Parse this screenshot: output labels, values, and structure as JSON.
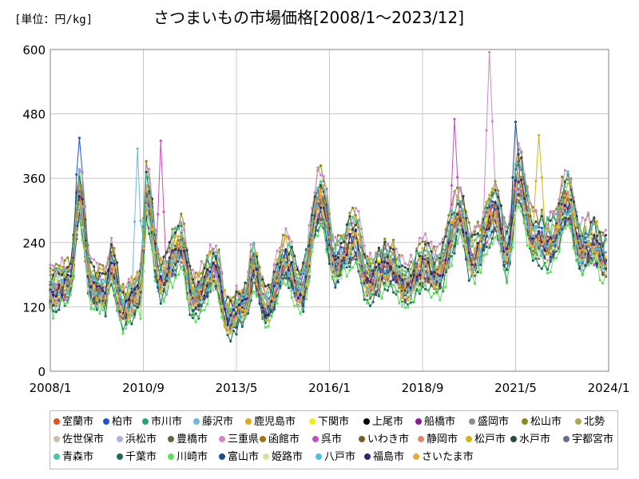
{
  "unit_label": "[単位：円/kg]",
  "title": "さつまいもの市場価格[2008/1～2023/12]",
  "chart_data": {
    "type": "line",
    "title": "さつまいもの市場価格[2008/1～2023/12]",
    "ylabel": "[単位：円/kg]",
    "xlabel": "",
    "ylim": [
      0,
      600
    ],
    "yticks": [
      0,
      120,
      240,
      360,
      480,
      600
    ],
    "xlim": [
      "2008/1",
      "2024/1"
    ],
    "xticks": [
      "2008/1",
      "2010/9",
      "2013/5",
      "2016/1",
      "2018/9",
      "2021/5",
      "2024/1"
    ],
    "grid": true,
    "legend_position": "bottom",
    "markers": true,
    "x_start": "2008/1",
    "x_end": "2023/12",
    "series_shape": [
      {
        "x": "2008/1",
        "level": 150
      },
      {
        "x": "2008/8",
        "level": 170
      },
      {
        "x": "2008/11",
        "level": 330
      },
      {
        "x": "2009/3",
        "level": 160
      },
      {
        "x": "2009/8",
        "level": 150
      },
      {
        "x": "2009/10",
        "level": 200
      },
      {
        "x": "2010/2",
        "level": 120
      },
      {
        "x": "2010/8",
        "level": 150
      },
      {
        "x": "2010/10",
        "level": 330
      },
      {
        "x": "2011/3",
        "level": 170
      },
      {
        "x": "2011/10",
        "level": 240
      },
      {
        "x": "2012/2",
        "level": 140
      },
      {
        "x": "2012/10",
        "level": 190
      },
      {
        "x": "2013/2",
        "level": 100
      },
      {
        "x": "2013/8",
        "level": 130
      },
      {
        "x": "2013/11",
        "level": 200
      },
      {
        "x": "2014/3",
        "level": 120
      },
      {
        "x": "2014/10",
        "level": 210
      },
      {
        "x": "2015/3",
        "level": 150
      },
      {
        "x": "2015/10",
        "level": 320
      },
      {
        "x": "2016/3",
        "level": 200
      },
      {
        "x": "2016/10",
        "level": 250
      },
      {
        "x": "2017/2",
        "level": 170
      },
      {
        "x": "2017/10",
        "level": 200
      },
      {
        "x": "2018/3",
        "level": 160
      },
      {
        "x": "2018/10",
        "level": 200
      },
      {
        "x": "2019/2",
        "level": 180
      },
      {
        "x": "2019/10",
        "level": 290
      },
      {
        "x": "2020/2",
        "level": 210
      },
      {
        "x": "2020/10",
        "level": 300
      },
      {
        "x": "2021/2",
        "level": 220
      },
      {
        "x": "2021/6",
        "level": 360
      },
      {
        "x": "2021/11",
        "level": 250
      },
      {
        "x": "2022/5",
        "level": 240
      },
      {
        "x": "2022/11",
        "level": 320
      },
      {
        "x": "2023/3",
        "level": 230
      },
      {
        "x": "2023/8",
        "level": 240
      },
      {
        "x": "2023/12",
        "level": 210
      }
    ],
    "peaks": [
      {
        "series": "柏市",
        "x": "2008/11",
        "y": 435
      },
      {
        "series": "藤沢市",
        "x": "2010/7",
        "y": 415
      },
      {
        "series": "呉市",
        "x": "2011/3",
        "y": 430
      },
      {
        "series": "呉市",
        "x": "2019/8",
        "y": 470
      },
      {
        "series": "三重県",
        "x": "2020/8",
        "y": 595
      },
      {
        "series": "富山市",
        "x": "2021/5",
        "y": 465
      },
      {
        "series": "松戸市",
        "x": "2022/1",
        "y": 440
      }
    ],
    "series": [
      {
        "name": "室蘭市",
        "color": "#e8501c"
      },
      {
        "name": "柏市",
        "color": "#1f56d6"
      },
      {
        "name": "市川市",
        "color": "#22a66e"
      },
      {
        "name": "藤沢市",
        "color": "#6fb6e6"
      },
      {
        "name": "鹿児島市",
        "color": "#e5a520"
      },
      {
        "name": "下関市",
        "color": "#f2ee10"
      },
      {
        "name": "上尾市",
        "color": "#000000"
      },
      {
        "name": "船橋市",
        "color": "#8e1a96"
      },
      {
        "name": "盛岡市",
        "color": "#8a8f95"
      },
      {
        "name": "松山市",
        "color": "#8c8a1c"
      },
      {
        "name": "北勢",
        "color": "#a9ab4f"
      },
      {
        "name": "佐世保市",
        "color": "#cdbfa6"
      },
      {
        "name": "浜松市",
        "color": "#a9b4dc"
      },
      {
        "name": "豊橋市",
        "color": "#6e6244"
      },
      {
        "name": "三重県",
        "color": "#cc8acb"
      },
      {
        "name": "函館市",
        "color": "#a0750e"
      },
      {
        "name": "呉市",
        "color": "#c84fc0"
      },
      {
        "name": "いわき市",
        "color": "#7a5a26"
      },
      {
        "name": "静岡市",
        "color": "#e08673"
      },
      {
        "name": "松戸市",
        "color": "#d4b21a"
      },
      {
        "name": "水戸市",
        "color": "#2b4a3a"
      },
      {
        "name": "宇都宮市",
        "color": "#62708e"
      },
      {
        "name": "青森市",
        "color": "#4ec4a8"
      },
      {
        "name": "千葉市",
        "color": "#1e6a60"
      },
      {
        "name": "川崎市",
        "color": "#5fe05a"
      },
      {
        "name": "富山市",
        "color": "#1d4f86"
      },
      {
        "name": "姫路市",
        "color": "#cfe8a0"
      },
      {
        "name": "八戸市",
        "color": "#47c3e8"
      },
      {
        "name": "福島市",
        "color": "#3a1f7a"
      },
      {
        "name": "さいたま市",
        "color": "#e8a935"
      }
    ]
  }
}
